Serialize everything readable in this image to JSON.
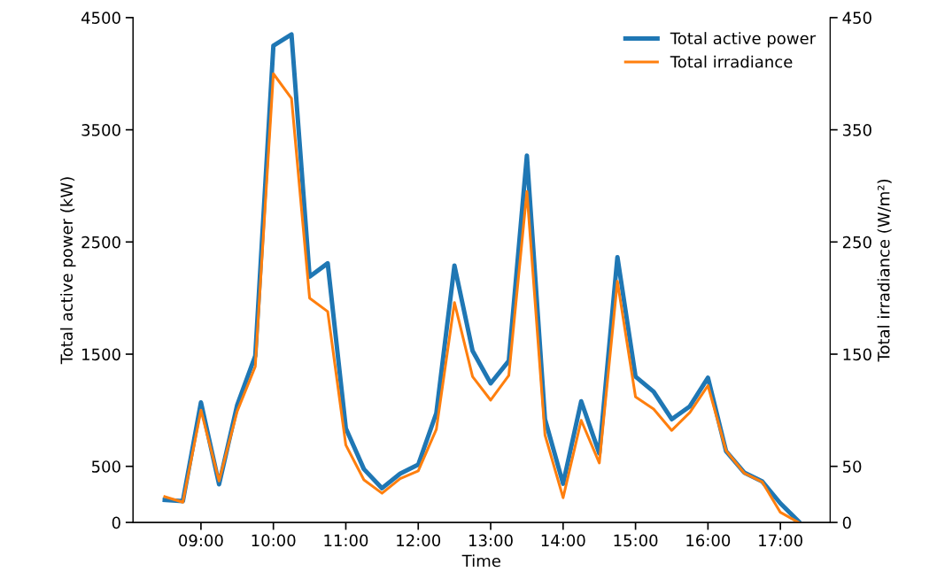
{
  "chart_data": {
    "type": "line",
    "xlabel": "Time",
    "ylabel": "Total active power (kW)",
    "y2label": "Total irradiance (W/m²)",
    "x": [
      8.5,
      8.75,
      9,
      9.25,
      9.5,
      9.75,
      10,
      10.25,
      10.5,
      10.75,
      11,
      11.25,
      11.5,
      11.75,
      12,
      12.25,
      12.5,
      12.75,
      13,
      13.25,
      13.5,
      13.75,
      14,
      14.25,
      14.5,
      14.75,
      15,
      15.25,
      15.5,
      15.75,
      16,
      16.25,
      16.5,
      16.75,
      17,
      17.25
    ],
    "series": [
      {
        "name": "Total active power",
        "color": "#1f77b4",
        "values": [
          200,
          190,
          1070,
          340,
          1045,
          1485,
          4250,
          4350,
          2190,
          2310,
          840,
          475,
          305,
          435,
          515,
          975,
          2290,
          1530,
          1240,
          1440,
          3270,
          920,
          345,
          1080,
          615,
          2365,
          1300,
          1165,
          920,
          1035,
          1290,
          635,
          445,
          365,
          170,
          10
        ]
      },
      {
        "name": "Total irradiance",
        "color": "#ff7f0e",
        "axis": "y2",
        "values": [
          23,
          18,
          100,
          37,
          99,
          139,
          400,
          378,
          200,
          188,
          69,
          38,
          26,
          39,
          46,
          83,
          196,
          130,
          109,
          131,
          295,
          78,
          22,
          91,
          53,
          215,
          112,
          101,
          82,
          98,
          122,
          64,
          44,
          36,
          9,
          0
        ]
      }
    ],
    "xlim": [
      8.0625,
      17.6875
    ],
    "xticks": [
      {
        "value": 9,
        "label": "09:00"
      },
      {
        "value": 10,
        "label": "10:00"
      },
      {
        "value": 11,
        "label": "11:00"
      },
      {
        "value": 12,
        "label": "12:00"
      },
      {
        "value": 13,
        "label": "13:00"
      },
      {
        "value": 14,
        "label": "14:00"
      },
      {
        "value": 15,
        "label": "15:00"
      },
      {
        "value": 16,
        "label": "16:00"
      },
      {
        "value": 17,
        "label": "17:00"
      }
    ],
    "ylim": [
      0,
      4500
    ],
    "yticks": [
      0,
      500,
      1500,
      2500,
      3500,
      4500
    ],
    "y2lim": [
      0,
      450
    ],
    "y2ticks": [
      0,
      50,
      150,
      250,
      350,
      450
    ],
    "grid": false,
    "legend": "top right",
    "marker": "none",
    "line_style": "solid"
  }
}
